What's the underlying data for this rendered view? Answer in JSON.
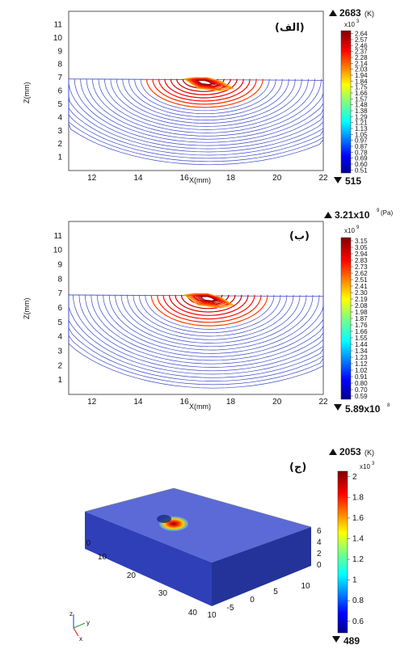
{
  "chart_data": [
    {
      "type": "contour",
      "panel_label": "(الف)",
      "xlabel": "X(mm)",
      "ylabel": "Z(mm)",
      "x_ticks": [
        "12",
        "14",
        "16",
        "18",
        "20",
        "22"
      ],
      "y_ticks": [
        "1",
        "2",
        "3",
        "4",
        "5",
        "6",
        "7",
        "8",
        "9",
        "10",
        "11"
      ],
      "x": [
        12,
        14,
        16,
        18,
        20,
        22
      ],
      "y": [
        1,
        2,
        3,
        4,
        5,
        6,
        7,
        8,
        9,
        10,
        11
      ],
      "xlim": [
        11,
        22
      ],
      "ylim": [
        0,
        12
      ],
      "peak_center": [
        16.8,
        6.8
      ],
      "colorbar": {
        "max_label": "2683",
        "max_unit": "(K)",
        "min_label": "515",
        "exponent": "x10",
        "exponent_power": "3",
        "ticks": [
          "2.64",
          "2.57",
          "2.46",
          "2.37",
          "2.28",
          "2.14",
          "2.03",
          "1.94",
          "1.84",
          "1.75",
          "1.66",
          "1.57",
          "1.48",
          "1.38",
          "1.29",
          "1.21",
          "1.13",
          "1.05",
          "0.97",
          "0.87",
          "0.78",
          "0.69",
          "0.60",
          "0.51"
        ]
      }
    },
    {
      "type": "contour",
      "panel_label": "(ب)",
      "xlabel": "X(mm)",
      "ylabel": "Z(mm)",
      "x_ticks": [
        "12",
        "14",
        "16",
        "18",
        "20",
        "22"
      ],
      "y_ticks": [
        "1",
        "2",
        "3",
        "4",
        "5",
        "6",
        "7",
        "8",
        "9",
        "10",
        "11"
      ],
      "x": [
        12,
        14,
        16,
        18,
        20,
        22
      ],
      "y": [
        1,
        2,
        3,
        4,
        5,
        6,
        7,
        8,
        9,
        10,
        11
      ],
      "xlim": [
        11,
        22
      ],
      "ylim": [
        0,
        12
      ],
      "peak_center": [
        17.0,
        6.8
      ],
      "colorbar": {
        "max_label": "3.21x10",
        "max_power": "9",
        "max_unit": "(Pa)",
        "min_label": "5.89x10",
        "min_power": "8",
        "exponent": "x10",
        "exponent_power": "9",
        "ticks": [
          "3.15",
          "3.05",
          "2.94",
          "2.83",
          "2.73",
          "2.62",
          "2.51",
          "2.41",
          "2.30",
          "2.19",
          "2.08",
          "1.98",
          "1.87",
          "1.76",
          "1.66",
          "1.55",
          "1.44",
          "1.34",
          "1.23",
          "1.12",
          "1.02",
          "0.91",
          "0.80",
          "0.70",
          "0.59"
        ]
      }
    },
    {
      "type": "surface3d",
      "panel_label": "(ج)",
      "x_ticks": [
        "0",
        "10",
        "20",
        "30",
        "40"
      ],
      "y_ticks": [
        "10",
        "-5",
        "0",
        "5",
        "10"
      ],
      "z_ticks": [
        "0",
        "2",
        "4",
        "6"
      ],
      "axis_labels": {
        "x": "x",
        "y": "y",
        "z": "z"
      },
      "colorbar": {
        "max_label": "2053",
        "max_unit": "(K)",
        "min_label": "489",
        "exponent": "x10",
        "exponent_power": "3",
        "ticks": [
          "2",
          "1.8",
          "1.6",
          "1.4",
          "1.2",
          "1",
          "0.8",
          "0.6"
        ]
      }
    }
  ],
  "colors": {
    "contour_line": "#3b45c8",
    "slab_top": "#5b6ad6",
    "slab_front": "#2e3fb8",
    "slab_side": "#243399"
  }
}
